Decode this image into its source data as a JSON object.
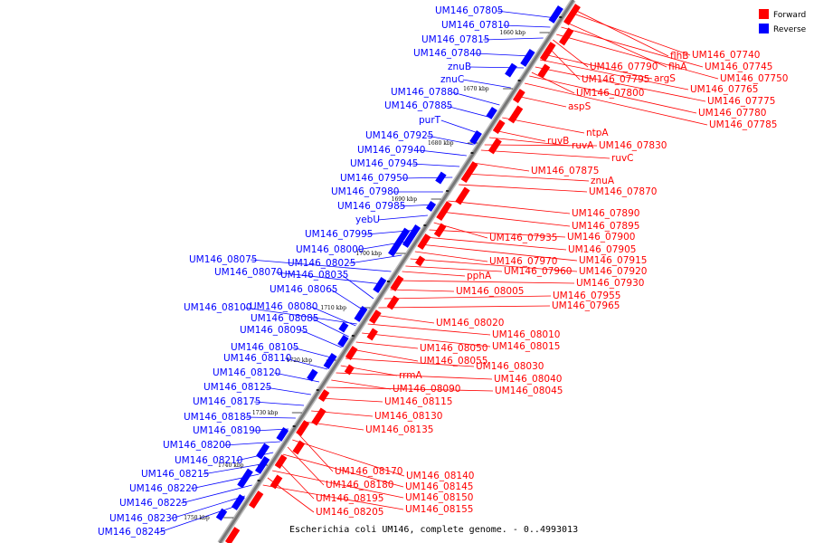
{
  "caption": "Escherichia coli UM146, complete genome. - 0..4993013",
  "legend": [
    {
      "label": "Forward",
      "color": "#ff0000"
    },
    {
      "label": "Reverse",
      "color": "#0000ff"
    }
  ],
  "colors": {
    "forward": "#ff0000",
    "reverse": "#0000ff",
    "backbone": "#777777",
    "backbone_edge": "#bbbbbb"
  },
  "ticks": [
    "1660 kbp",
    "1670 kbp",
    "1680 kbp",
    "1690 kbp",
    "1700 kbp",
    "1710 kbp",
    "1720 kbp",
    "1730 kbp",
    "1740 kbp",
    "1750 kbp"
  ],
  "left_labels": [
    "UM146_07805",
    "UM146_07810",
    "UM146_07815",
    "UM146_07840",
    "znuB",
    "znuC",
    "UM146_07880",
    "UM146_07885",
    "purT",
    "UM146_07925",
    "UM146_07940",
    "UM146_07945",
    "UM146_07950",
    "UM146_07980",
    "UM146_07985",
    "yebU",
    "UM146_07995",
    "UM146_08000",
    "UM146_08025",
    "UM146_08075",
    "UM146_08070",
    "UM146_08035",
    "UM146_08065",
    "UM146_08100",
    "UM146_08080",
    "UM146_08085",
    "UM146_08095",
    "UM146_08105",
    "UM146_08110",
    "UM146_08120",
    "UM146_08125",
    "UM146_08175",
    "UM146_08185",
    "UM146_08190",
    "UM146_08200",
    "UM146_08210",
    "UM146_08215",
    "UM146_08220",
    "UM146_08225",
    "UM146_08230",
    "UM146_08245"
  ],
  "right_labels": [
    "flhB",
    "UM146_07740",
    "flhA",
    "UM146_07745",
    "UM146_07750",
    "UM146_07790",
    "UM146_07795",
    "argS",
    "UM146_07765",
    "UM146_07800",
    "UM146_07775",
    "UM146_07780",
    "UM146_07785",
    "aspS",
    "ntpA",
    "ruvB",
    "ruvA",
    "UM146_07830",
    "ruvC",
    "UM146_07875",
    "znuA",
    "UM146_07870",
    "UM146_07890",
    "UM146_07895",
    "UM146_07935",
    "UM146_07900",
    "UM146_07905",
    "UM146_07915",
    "UM146_07970",
    "UM146_07920",
    "UM146_07960",
    "pphA",
    "UM146_07930",
    "UM146_08005",
    "UM146_07955",
    "UM146_07965",
    "UM146_08020",
    "UM146_08010",
    "UM146_08015",
    "UM146_08050",
    "UM146_08055",
    "UM146_08030",
    "rrmA",
    "UM146_08040",
    "UM146_08090",
    "UM146_08045",
    "UM146_08115",
    "UM146_08130",
    "UM146_08135",
    "UM146_08170",
    "UM146_08140",
    "UM146_08180",
    "UM146_08145",
    "UM146_08195",
    "UM146_08150",
    "UM146_08205",
    "UM146_08155"
  ]
}
